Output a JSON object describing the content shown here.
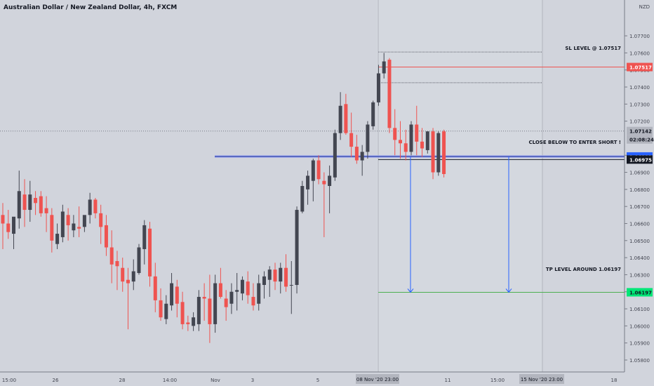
{
  "header": {
    "symbol_title": "Australian Dollar / New Zealand Dollar, 4h, FXCM"
  },
  "price_axis": {
    "currency": "NZD",
    "ticks": [
      "1.07700",
      "1.07600",
      "1.07500",
      "1.07400",
      "1.07300",
      "1.07200",
      "1.07000",
      "1.06900",
      "1.06800",
      "1.06700",
      "1.06600",
      "1.06500",
      "1.06400",
      "1.06300",
      "1.06200",
      "1.06100",
      "1.06000",
      "1.05900",
      "1.05800"
    ],
    "countdown": "02:08:24"
  },
  "time_axis": {
    "ticks": [
      "15:00",
      "26",
      "28",
      "14:00",
      "Nov",
      "3",
      "5",
      "8",
      "11",
      "15:00",
      "18"
    ],
    "highlight_start": "08 Nov '20  23:00",
    "highlight_end": "15 Nov '20  23:00"
  },
  "colors": {
    "background": "#d1d4dc",
    "bull_candle": "#434651",
    "bear_candle": "#ef5350",
    "sl_line": "#ef5350",
    "tp_line": "#4caf50",
    "entry_line": "#3f51b5",
    "arrow": "#2962ff",
    "current_price_bg": "#131722"
  },
  "annotations": {
    "sl_text": "SL LEVEL @ 1.07517",
    "sl_price": "1.07517",
    "entry_text": "CLOSE BELOW TO ENTER SHORT !",
    "entry_price": "1.06993",
    "current_price": "1.06975",
    "last_marker_price": "1.07142",
    "tp_text": "TP LEVEL AROUND 1.06197",
    "tp_price": "1.06197"
  },
  "chart_data": {
    "type": "candlestick",
    "title": "Australian Dollar / New Zealand Dollar, 4h, FXCM",
    "ylim": [
      1.0573,
      1.0791
    ],
    "levels": {
      "stop_loss": 1.07517,
      "entry": 1.06993,
      "take_profit": 1.06197,
      "current": 1.06975,
      "marker": 1.07142,
      "upper_dotted_1": 1.07605,
      "upper_dotted_2": 1.07425
    },
    "candles": [
      {
        "o": 1.0665,
        "h": 1.0672,
        "l": 1.0645,
        "c": 1.066
      },
      {
        "o": 1.066,
        "h": 1.0668,
        "l": 1.0651,
        "c": 1.0655
      },
      {
        "o": 1.0654,
        "h": 1.0663,
        "l": 1.0645,
        "c": 1.0664
      },
      {
        "o": 1.0663,
        "h": 1.0691,
        "l": 1.0657,
        "c": 1.0679
      },
      {
        "o": 1.0677,
        "h": 1.0686,
        "l": 1.0658,
        "c": 1.0668
      },
      {
        "o": 1.0668,
        "h": 1.0685,
        "l": 1.0661,
        "c": 1.0677
      },
      {
        "o": 1.0675,
        "h": 1.0679,
        "l": 1.0665,
        "c": 1.0672
      },
      {
        "o": 1.0676,
        "h": 1.0679,
        "l": 1.0664,
        "c": 1.0666
      },
      {
        "o": 1.0669,
        "h": 1.0676,
        "l": 1.0655,
        "c": 1.0666
      },
      {
        "o": 1.0665,
        "h": 1.0669,
        "l": 1.0643,
        "c": 1.065
      },
      {
        "o": 1.0648,
        "h": 1.066,
        "l": 1.0645,
        "c": 1.0654
      },
      {
        "o": 1.0652,
        "h": 1.0671,
        "l": 1.0649,
        "c": 1.0667
      },
      {
        "o": 1.0665,
        "h": 1.0669,
        "l": 1.065,
        "c": 1.0659
      },
      {
        "o": 1.0656,
        "h": 1.0665,
        "l": 1.0652,
        "c": 1.066
      },
      {
        "o": 1.0658,
        "h": 1.067,
        "l": 1.0652,
        "c": 1.0657
      },
      {
        "o": 1.0658,
        "h": 1.0664,
        "l": 1.0655,
        "c": 1.0665
      },
      {
        "o": 1.0665,
        "h": 1.0678,
        "l": 1.066,
        "c": 1.0674
      },
      {
        "o": 1.0674,
        "h": 1.0675,
        "l": 1.0663,
        "c": 1.0666
      },
      {
        "o": 1.0666,
        "h": 1.0671,
        "l": 1.0648,
        "c": 1.0658
      },
      {
        "o": 1.0659,
        "h": 1.0665,
        "l": 1.0641,
        "c": 1.0646
      },
      {
        "o": 1.0646,
        "h": 1.0656,
        "l": 1.0625,
        "c": 1.0636
      },
      {
        "o": 1.0638,
        "h": 1.0644,
        "l": 1.0621,
        "c": 1.0635
      },
      {
        "o": 1.0634,
        "h": 1.064,
        "l": 1.062,
        "c": 1.0626
      },
      {
        "o": 1.0627,
        "h": 1.0634,
        "l": 1.0598,
        "c": 1.0625
      },
      {
        "o": 1.0626,
        "h": 1.0639,
        "l": 1.0621,
        "c": 1.0632
      },
      {
        "o": 1.0631,
        "h": 1.0648,
        "l": 1.063,
        "c": 1.0646
      },
      {
        "o": 1.0645,
        "h": 1.0662,
        "l": 1.0636,
        "c": 1.0659
      },
      {
        "o": 1.0657,
        "h": 1.0661,
        "l": 1.0623,
        "c": 1.0629
      },
      {
        "o": 1.0629,
        "h": 1.0637,
        "l": 1.0608,
        "c": 1.0615
      },
      {
        "o": 1.0615,
        "h": 1.0622,
        "l": 1.0603,
        "c": 1.0605
      },
      {
        "o": 1.0604,
        "h": 1.0618,
        "l": 1.0601,
        "c": 1.0613
      },
      {
        "o": 1.0612,
        "h": 1.0631,
        "l": 1.0609,
        "c": 1.0625
      },
      {
        "o": 1.0623,
        "h": 1.0627,
        "l": 1.0605,
        "c": 1.0613
      },
      {
        "o": 1.0614,
        "h": 1.062,
        "l": 1.0598,
        "c": 1.0601
      },
      {
        "o": 1.0602,
        "h": 1.0606,
        "l": 1.0597,
        "c": 1.0601
      },
      {
        "o": 1.06,
        "h": 1.0608,
        "l": 1.0597,
        "c": 1.0605
      },
      {
        "o": 1.0601,
        "h": 1.0621,
        "l": 1.0597,
        "c": 1.0617
      },
      {
        "o": 1.0617,
        "h": 1.0625,
        "l": 1.0603,
        "c": 1.0616
      },
      {
        "o": 1.0616,
        "h": 1.063,
        "l": 1.059,
        "c": 1.0601
      },
      {
        "o": 1.0601,
        "h": 1.063,
        "l": 1.0596,
        "c": 1.0625
      },
      {
        "o": 1.0625,
        "h": 1.0634,
        "l": 1.0616,
        "c": 1.0617
      },
      {
        "o": 1.0616,
        "h": 1.0621,
        "l": 1.0603,
        "c": 1.0611
      },
      {
        "o": 1.0613,
        "h": 1.0625,
        "l": 1.0607,
        "c": 1.062
      },
      {
        "o": 1.062,
        "h": 1.0631,
        "l": 1.0609,
        "c": 1.0621
      },
      {
        "o": 1.0619,
        "h": 1.0629,
        "l": 1.0615,
        "c": 1.0627
      },
      {
        "o": 1.0626,
        "h": 1.0632,
        "l": 1.0613,
        "c": 1.0618
      },
      {
        "o": 1.0617,
        "h": 1.0625,
        "l": 1.0609,
        "c": 1.0612
      },
      {
        "o": 1.0613,
        "h": 1.063,
        "l": 1.0609,
        "c": 1.0625
      },
      {
        "o": 1.0624,
        "h": 1.0632,
        "l": 1.0616,
        "c": 1.0629
      },
      {
        "o": 1.0627,
        "h": 1.0635,
        "l": 1.0617,
        "c": 1.0633
      },
      {
        "o": 1.0633,
        "h": 1.0637,
        "l": 1.0621,
        "c": 1.0626
      },
      {
        "o": 1.0626,
        "h": 1.0637,
        "l": 1.0619,
        "c": 1.0634
      },
      {
        "o": 1.0634,
        "h": 1.0642,
        "l": 1.062,
        "c": 1.0623
      },
      {
        "o": 1.0624,
        "h": 1.0638,
        "l": 1.0607,
        "c": 1.0624
      },
      {
        "o": 1.0624,
        "h": 1.067,
        "l": 1.0619,
        "c": 1.0668
      },
      {
        "o": 1.0667,
        "h": 1.0685,
        "l": 1.0666,
        "c": 1.0682
      },
      {
        "o": 1.068,
        "h": 1.0691,
        "l": 1.0671,
        "c": 1.0688
      },
      {
        "o": 1.0685,
        "h": 1.0698,
        "l": 1.0673,
        "c": 1.0697
      },
      {
        "o": 1.0697,
        "h": 1.07,
        "l": 1.0683,
        "c": 1.0686
      },
      {
        "o": 1.0685,
        "h": 1.069,
        "l": 1.0652,
        "c": 1.0683
      },
      {
        "o": 1.0682,
        "h": 1.0694,
        "l": 1.0666,
        "c": 1.0688
      },
      {
        "o": 1.0687,
        "h": 1.0715,
        "l": 1.0685,
        "c": 1.0713
      },
      {
        "o": 1.0713,
        "h": 1.0737,
        "l": 1.0709,
        "c": 1.0729
      },
      {
        "o": 1.073,
        "h": 1.0736,
        "l": 1.0712,
        "c": 1.0713
      },
      {
        "o": 1.0713,
        "h": 1.0725,
        "l": 1.0699,
        "c": 1.0705
      },
      {
        "o": 1.0705,
        "h": 1.0712,
        "l": 1.0695,
        "c": 1.0697
      },
      {
        "o": 1.0697,
        "h": 1.0706,
        "l": 1.0688,
        "c": 1.0702
      },
      {
        "o": 1.0702,
        "h": 1.072,
        "l": 1.0698,
        "c": 1.0718
      },
      {
        "o": 1.0717,
        "h": 1.0732,
        "l": 1.0715,
        "c": 1.0731
      },
      {
        "o": 1.0731,
        "h": 1.0753,
        "l": 1.0729,
        "c": 1.0748
      },
      {
        "o": 1.0748,
        "h": 1.076,
        "l": 1.0745,
        "c": 1.0755
      },
      {
        "o": 1.0756,
        "h": 1.0757,
        "l": 1.0713,
        "c": 1.0716
      },
      {
        "o": 1.0716,
        "h": 1.0727,
        "l": 1.07,
        "c": 1.0709
      },
      {
        "o": 1.0709,
        "h": 1.072,
        "l": 1.0698,
        "c": 1.0707
      },
      {
        "o": 1.0707,
        "h": 1.0715,
        "l": 1.0697,
        "c": 1.0702
      },
      {
        "o": 1.0702,
        "h": 1.072,
        "l": 1.07,
        "c": 1.0718
      },
      {
        "o": 1.0718,
        "h": 1.0729,
        "l": 1.07,
        "c": 1.0708
      },
      {
        "o": 1.0708,
        "h": 1.0716,
        "l": 1.0699,
        "c": 1.0704
      },
      {
        "o": 1.0703,
        "h": 1.0714,
        "l": 1.0701,
        "c": 1.0714
      },
      {
        "o": 1.0714,
        "h": 1.0716,
        "l": 1.0686,
        "c": 1.069
      },
      {
        "o": 1.069,
        "h": 1.0714,
        "l": 1.0688,
        "c": 1.0713
      },
      {
        "o": 1.0714,
        "h": 1.0715,
        "l": 1.0687,
        "c": 1.0689
      }
    ]
  }
}
